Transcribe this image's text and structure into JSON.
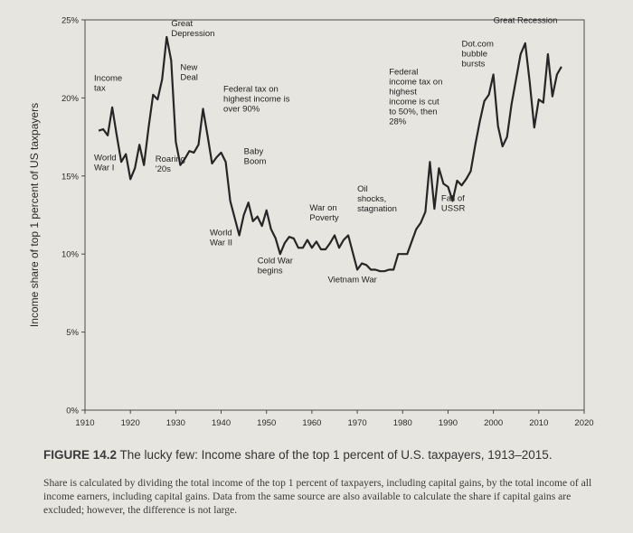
{
  "figure": {
    "number": "FIGURE 14.2",
    "title": "The lucky few: Income share of the top 1 percent of U.S. taxpayers, 1913–2015.",
    "note": "Share is calculated by dividing the total income of the top 1 percent of taxpayers, including capital gains, by the total income of all income earners, including capital gains. Data from the same source are also available to calculate the share if capital gains are excluded; however, the difference is not large."
  },
  "chart_data": {
    "type": "line",
    "title": "",
    "xlabel": "",
    "ylabel": "Income share of top 1 percent of US taxpayers",
    "xlim": [
      1910,
      2020
    ],
    "ylim": [
      0,
      25
    ],
    "x_ticks": [
      "1910",
      "1920",
      "1930",
      "1940",
      "1950",
      "1960",
      "1970",
      "1980",
      "1990",
      "2000",
      "2010",
      "2020"
    ],
    "y_ticks": [
      "0%",
      "5%",
      "10%",
      "15%",
      "20%",
      "25%"
    ],
    "grid": false,
    "series": [
      {
        "color": "#262626",
        "x": [
          1913,
          1914,
          1915,
          1916,
          1917,
          1918,
          1919,
          1920,
          1921,
          1922,
          1923,
          1924,
          1925,
          1926,
          1927,
          1928,
          1929,
          1930,
          1931,
          1932,
          1933,
          1934,
          1935,
          1936,
          1937,
          1938,
          1939,
          1940,
          1941,
          1942,
          1943,
          1944,
          1945,
          1946,
          1947,
          1948,
          1949,
          1950,
          1951,
          1952,
          1953,
          1954,
          1955,
          1956,
          1957,
          1958,
          1959,
          1960,
          1961,
          1962,
          1963,
          1964,
          1965,
          1966,
          1967,
          1968,
          1969,
          1970,
          1971,
          1972,
          1973,
          1974,
          1975,
          1976,
          1977,
          1978,
          1979,
          1980,
          1981,
          1982,
          1983,
          1984,
          1985,
          1986,
          1987,
          1988,
          1989,
          1990,
          1991,
          1992,
          1993,
          1994,
          1995,
          1996,
          1997,
          1998,
          1999,
          2000,
          2001,
          2002,
          2003,
          2004,
          2005,
          2006,
          2007,
          2008,
          2009,
          2010,
          2011,
          2012,
          2013,
          2014,
          2015
        ],
        "y": [
          17.9,
          18.0,
          17.6,
          19.4,
          17.6,
          15.9,
          16.4,
          14.8,
          15.5,
          17.0,
          15.7,
          18.1,
          20.2,
          19.9,
          21.2,
          23.9,
          22.4,
          17.2,
          15.7,
          16.1,
          16.6,
          16.5,
          17.0,
          19.3,
          17.6,
          15.8,
          16.2,
          16.5,
          15.9,
          13.4,
          12.3,
          11.2,
          12.5,
          13.3,
          12.1,
          12.4,
          11.8,
          12.8,
          11.6,
          11.0,
          10.0,
          10.7,
          11.1,
          11.0,
          10.4,
          10.4,
          10.9,
          10.4,
          10.8,
          10.3,
          10.3,
          10.7,
          11.2,
          10.4,
          10.9,
          11.2,
          10.1,
          9.0,
          9.4,
          9.3,
          9.0,
          9.0,
          8.9,
          8.9,
          9.0,
          9.0,
          10.0,
          10.0,
          10.0,
          10.8,
          11.6,
          12.0,
          12.7,
          15.9,
          12.9,
          15.5,
          14.5,
          14.3,
          13.4,
          14.7,
          14.4,
          14.8,
          15.3,
          17.0,
          18.5,
          19.8,
          20.2,
          21.5,
          18.2,
          16.9,
          17.5,
          19.6,
          21.2,
          22.8,
          23.5,
          21.0,
          18.1,
          19.9,
          19.7,
          22.8,
          20.1,
          21.5,
          22.0
        ]
      }
    ],
    "annotations": [
      {
        "text": [
          "World",
          "War I"
        ],
        "x": 1912,
        "y": 16.0
      },
      {
        "text": [
          "Income",
          "tax"
        ],
        "x": 1912,
        "y": 21.1
      },
      {
        "text": [
          "Roaring",
          "'20s"
        ],
        "x": 1925.5,
        "y": 15.9
      },
      {
        "text": [
          "Great",
          "Depression"
        ],
        "x": 1929,
        "y": 24.6
      },
      {
        "text": [
          "New",
          "Deal"
        ],
        "x": 1931,
        "y": 21.8
      },
      {
        "text": [
          "Federal tax on",
          "highest income is",
          "over 90%"
        ],
        "x": 1940.5,
        "y": 20.4
      },
      {
        "text": [
          "Baby",
          "Boom"
        ],
        "x": 1945,
        "y": 16.4
      },
      {
        "text": [
          "World",
          "War II"
        ],
        "x": 1937.5,
        "y": 11.2
      },
      {
        "text": [
          "Cold War",
          "begins"
        ],
        "x": 1948,
        "y": 9.4
      },
      {
        "text": [
          "War on",
          "Poverty"
        ],
        "x": 1959.5,
        "y": 12.8
      },
      {
        "text": [
          "Oil",
          "shocks,",
          "stagnation"
        ],
        "x": 1970,
        "y": 14.0
      },
      {
        "text": [
          "Vietnam War"
        ],
        "x": 1963.5,
        "y": 8.2
      },
      {
        "text": [
          "Federal",
          "income tax on",
          "highest",
          "income is cut",
          "to 50%, then",
          "28%"
        ],
        "x": 1977,
        "y": 21.5
      },
      {
        "text": [
          "Fall of",
          "USSR"
        ],
        "x": 1988.5,
        "y": 13.4
      },
      {
        "text": [
          "Dot.com",
          "bubble",
          "bursts"
        ],
        "x": 1993,
        "y": 23.3
      },
      {
        "text": [
          "Great Recession"
        ],
        "x": 2000,
        "y": 24.8
      }
    ]
  }
}
